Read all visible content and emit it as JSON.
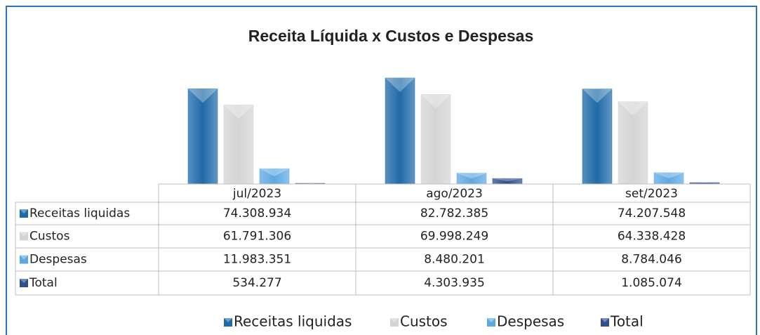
{
  "chart_data": {
    "type": "bar",
    "title": "Receita Líquida x Custos e Despesas",
    "categories": [
      "jul/2023",
      "ago/2023",
      "set/2023"
    ],
    "series": [
      {
        "name": "Receitas liquidas",
        "color": "#1f6aa8",
        "values": [
          74308934,
          82782385,
          74207548
        ],
        "value_labels": [
          "74.308.934",
          "82.782.385",
          "74.207.548"
        ]
      },
      {
        "name": "Custos",
        "color": "#d4d4d4",
        "values": [
          61791306,
          69998249,
          64338428
        ],
        "value_labels": [
          "61.791.306",
          "69.998.249",
          "64.338.428"
        ]
      },
      {
        "name": "Despesas",
        "color": "#5ea8e2",
        "values": [
          11983351,
          8480201,
          8784046
        ],
        "value_labels": [
          "11.983.351",
          "8.480.201",
          "8.784.046"
        ]
      },
      {
        "name": "Total",
        "color": "#2e4f8c",
        "values": [
          534277,
          4303935,
          1085074
        ],
        "value_labels": [
          "534.277",
          "4.303.935",
          "1.085.074"
        ]
      }
    ]
  }
}
